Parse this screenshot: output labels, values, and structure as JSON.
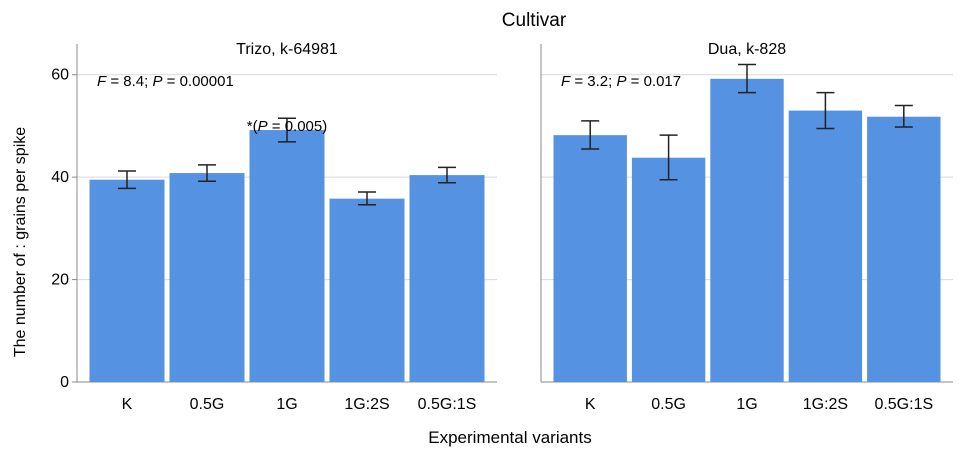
{
  "header": {
    "title": "Cultivar",
    "ylabel": "The number of : grains per spike",
    "xlabel": "Experimental variants"
  },
  "colors": {
    "bar": "#5592e1",
    "gridline": "#d9d9d9",
    "axis": "#888888"
  },
  "chart_data": [
    {
      "type": "bar",
      "title": "Trizo, k-64981",
      "stat": {
        "F": "8.4",
        "P": "0.00001"
      },
      "annotation": {
        "category": "1G",
        "star": "*",
        "P": "0.005"
      },
      "categories": [
        "K",
        "0.5G",
        "1G",
        "1G:2S",
        "0.5G:1S"
      ],
      "values": [
        39.5,
        40.8,
        49.2,
        35.8,
        40.4
      ],
      "error_low": [
        37.8,
        39.2,
        46.9,
        34.6,
        38.9
      ],
      "error_high": [
        41.2,
        42.4,
        51.5,
        37.1,
        41.9
      ],
      "ylim": [
        0,
        66
      ],
      "yticks": [
        0,
        20,
        40,
        60
      ],
      "grid": true
    },
    {
      "type": "bar",
      "title": "Dua, k-828",
      "stat": {
        "F": "3.2",
        "P": "0.017"
      },
      "categories": [
        "K",
        "0.5G",
        "1G",
        "1G:2S",
        "0.5G:1S"
      ],
      "values": [
        48.2,
        43.8,
        59.2,
        53.0,
        51.8
      ],
      "error_low": [
        45.5,
        39.5,
        56.5,
        49.5,
        49.8
      ],
      "error_high": [
        51.0,
        48.2,
        62.0,
        56.5,
        54.0
      ],
      "ylim": [
        0,
        66
      ],
      "yticks": [
        0,
        20,
        40,
        60
      ],
      "grid": true
    }
  ]
}
